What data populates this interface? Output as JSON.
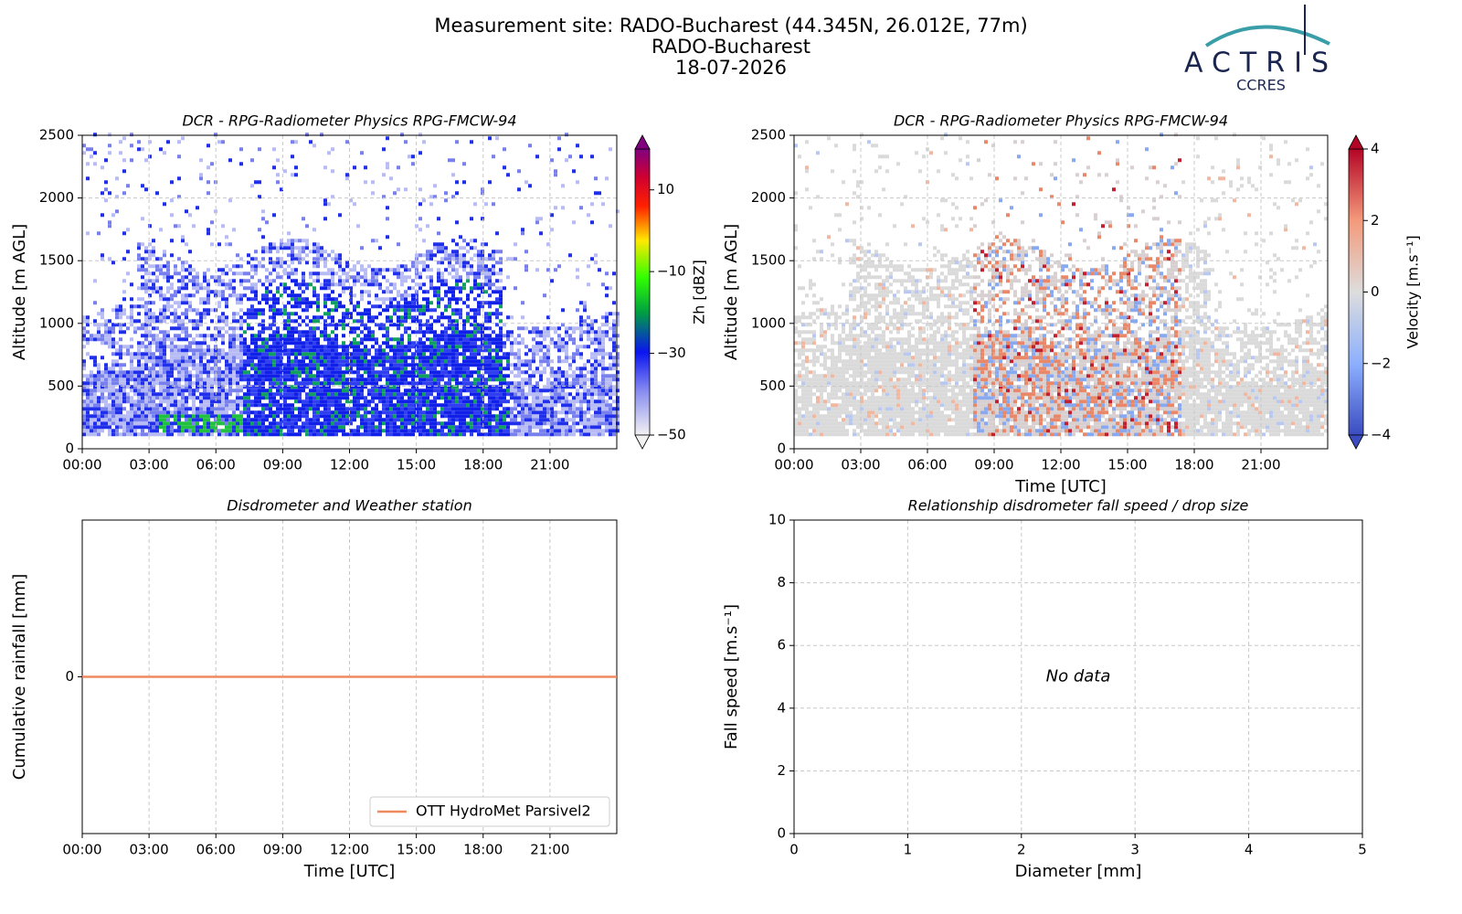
{
  "header": {
    "title_lines": [
      "Measurement site: RADO-Bucharest (44.345N, 26.012E, 77m)",
      "RADO-Bucharest",
      "18-07-2026"
    ],
    "logo": "ACTRIS",
    "logo_sub": "CCRES"
  },
  "chart_data": [
    {
      "type": "heatmap",
      "title": "DCR - RPG-Radiometer Physics RPG-FMCW-94",
      "y_label": "Altitude [m AGL]",
      "xlim": [
        0,
        24
      ],
      "xticks": [
        {
          "value": 0,
          "label": "00:00"
        },
        {
          "value": 3,
          "label": "03:00"
        },
        {
          "value": 6,
          "label": "06:00"
        },
        {
          "value": 9,
          "label": "09:00"
        },
        {
          "value": 12,
          "label": "12:00"
        },
        {
          "value": 15,
          "label": "15:00"
        },
        {
          "value": 18,
          "label": "18:00"
        },
        {
          "value": 21,
          "label": "21:00"
        }
      ],
      "ylim": [
        0,
        2500
      ],
      "yticks": [
        0,
        500,
        1000,
        1500,
        2000,
        2500
      ],
      "grid": true,
      "colormap": "reflectivity",
      "colorbar_label": "Zh [dBZ]",
      "clim": [
        -50,
        20
      ],
      "colorbar_ticks": [
        {
          "value": -50,
          "label": "−50"
        },
        {
          "value": -30,
          "label": "−30"
        },
        {
          "value": -10,
          "label": "−10"
        },
        10
      ]
    },
    {
      "type": "heatmap",
      "title": "DCR - RPG-Radiometer Physics RPG-FMCW-94",
      "y_label": "Altitude [m AGL]",
      "x_label": "Time [UTC]",
      "xlim": [
        0,
        24
      ],
      "xticks": [
        {
          "value": 0,
          "label": "00:00"
        },
        {
          "value": 3,
          "label": "03:00"
        },
        {
          "value": 6,
          "label": "06:00"
        },
        {
          "value": 9,
          "label": "09:00"
        },
        {
          "value": 12,
          "label": "12:00"
        },
        {
          "value": 15,
          "label": "15:00"
        },
        {
          "value": 18,
          "label": "18:00"
        },
        {
          "value": 21,
          "label": "21:00"
        }
      ],
      "ylim": [
        0,
        2500
      ],
      "yticks": [
        0,
        500,
        1000,
        1500,
        2000,
        2500
      ],
      "grid": true,
      "colormap": "coolwarm",
      "colorbar_label": "Velocity [m.s⁻¹]",
      "clim": [
        -4,
        4
      ],
      "colorbar_ticks": [
        {
          "value": -4,
          "label": "−4"
        },
        {
          "value": -2,
          "label": "−2"
        },
        0,
        2,
        4
      ]
    },
    {
      "type": "line",
      "title": "Disdrometer and Weather station",
      "y_label": "Cumulative rainfall [mm]",
      "x_label": "Time [UTC]",
      "xlim": [
        0,
        24
      ],
      "xticks": [
        {
          "value": 0,
          "label": "00:00"
        },
        {
          "value": 3,
          "label": "03:00"
        },
        {
          "value": 6,
          "label": "06:00"
        },
        {
          "value": 9,
          "label": "09:00"
        },
        {
          "value": 12,
          "label": "12:00"
        },
        {
          "value": 15,
          "label": "15:00"
        },
        {
          "value": 18,
          "label": "18:00"
        },
        {
          "value": 21,
          "label": "21:00"
        }
      ],
      "ylim": [
        -0.055,
        0.055
      ],
      "yticks": [
        0
      ],
      "grid": true,
      "legend": "lower right",
      "series": [
        {
          "name": "OTT HydroMet Parsivel2",
          "color": "#ee8a5e",
          "x": [
            0,
            24
          ],
          "values": [
            0,
            0
          ]
        }
      ]
    },
    {
      "type": "scatter",
      "title": "Relationship disdrometer fall speed / drop size",
      "y_label": "Fall speed [m.s⁻¹]",
      "x_label": "Diameter [mm]",
      "xlim": [
        0,
        5
      ],
      "xticks": [
        0,
        1,
        2,
        3,
        4,
        5
      ],
      "ylim": [
        0,
        10
      ],
      "yticks": [
        0,
        2,
        4,
        6,
        8,
        10
      ],
      "grid": true,
      "annotation": "No data"
    }
  ]
}
